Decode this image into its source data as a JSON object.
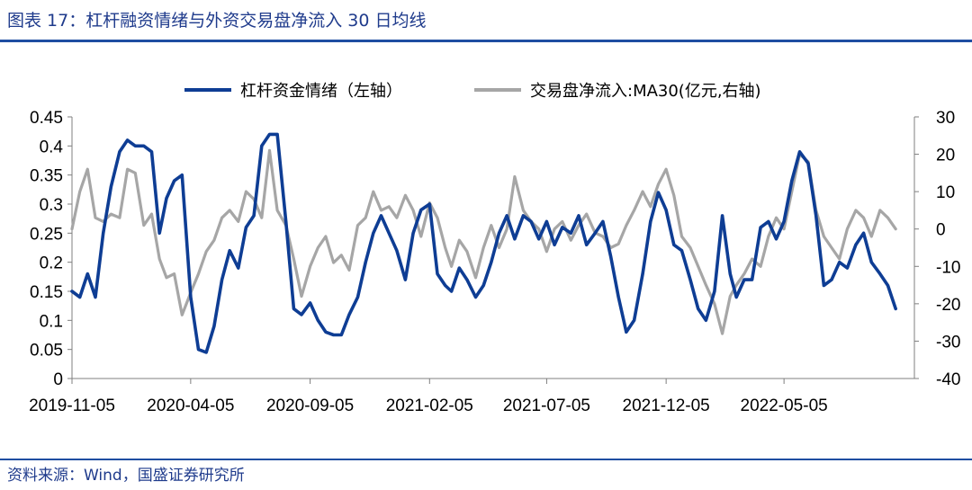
{
  "header": {
    "title": "图表 17：杠杆融资情绪与外资交易盘净流入 30 日均线"
  },
  "footer": {
    "source": "资料来源：Wind，国盛证券研究所"
  },
  "chart_data": {
    "type": "line",
    "title": "",
    "legend_position": "top",
    "grid": false,
    "x_tick_labels": [
      "2019-11-05",
      "2020-04-05",
      "2020-09-05",
      "2021-02-05",
      "2021-07-05",
      "2021-12-05",
      "2022-05-05"
    ],
    "x_range": [
      "2019-11-05",
      "2022-10-19"
    ],
    "y_left": {
      "ylim": [
        0,
        0.45
      ],
      "ticks": [
        "0",
        "0.05",
        "0.1",
        "0.15",
        "0.2",
        "0.25",
        "0.3",
        "0.35",
        "0.4",
        "0.45"
      ]
    },
    "y_right": {
      "ylim": [
        -40,
        30
      ],
      "ticks": [
        "-40",
        "-30",
        "-20",
        "-10",
        "0",
        "10",
        "20",
        "30"
      ]
    },
    "series": [
      {
        "name": "杠杆资金情绪（左轴）",
        "axis": "left",
        "color": "#0e3d94",
        "points": [
          [
            "2019-11-05",
            0.15
          ],
          [
            "2019-11-15",
            0.14
          ],
          [
            "2019-11-25",
            0.18
          ],
          [
            "2019-12-05",
            0.14
          ],
          [
            "2019-12-15",
            0.25
          ],
          [
            "2019-12-25",
            0.33
          ],
          [
            "2020-01-05",
            0.39
          ],
          [
            "2020-01-15",
            0.41
          ],
          [
            "2020-01-25",
            0.4
          ],
          [
            "2020-02-05",
            0.4
          ],
          [
            "2020-02-15",
            0.39
          ],
          [
            "2020-02-25",
            0.25
          ],
          [
            "2020-03-05",
            0.31
          ],
          [
            "2020-03-15",
            0.34
          ],
          [
            "2020-03-25",
            0.35
          ],
          [
            "2020-04-05",
            0.14
          ],
          [
            "2020-04-15",
            0.05
          ],
          [
            "2020-04-25",
            0.045
          ],
          [
            "2020-05-05",
            0.09
          ],
          [
            "2020-05-15",
            0.17
          ],
          [
            "2020-05-25",
            0.22
          ],
          [
            "2020-06-05",
            0.19
          ],
          [
            "2020-06-15",
            0.26
          ],
          [
            "2020-06-25",
            0.28
          ],
          [
            "2020-07-05",
            0.4
          ],
          [
            "2020-07-15",
            0.42
          ],
          [
            "2020-07-25",
            0.42
          ],
          [
            "2020-08-05",
            0.27
          ],
          [
            "2020-08-15",
            0.12
          ],
          [
            "2020-08-25",
            0.11
          ],
          [
            "2020-09-05",
            0.13
          ],
          [
            "2020-09-15",
            0.1
          ],
          [
            "2020-09-25",
            0.08
          ],
          [
            "2020-10-05",
            0.075
          ],
          [
            "2020-10-15",
            0.075
          ],
          [
            "2020-10-25",
            0.11
          ],
          [
            "2020-11-05",
            0.14
          ],
          [
            "2020-11-15",
            0.2
          ],
          [
            "2020-11-25",
            0.25
          ],
          [
            "2020-12-05",
            0.28
          ],
          [
            "2020-12-15",
            0.25
          ],
          [
            "2020-12-25",
            0.22
          ],
          [
            "2021-01-05",
            0.17
          ],
          [
            "2021-01-15",
            0.25
          ],
          [
            "2021-01-25",
            0.29
          ],
          [
            "2021-02-05",
            0.3
          ],
          [
            "2021-02-15",
            0.18
          ],
          [
            "2021-02-25",
            0.16
          ],
          [
            "2021-03-05",
            0.15
          ],
          [
            "2021-03-15",
            0.19
          ],
          [
            "2021-03-25",
            0.17
          ],
          [
            "2021-04-05",
            0.14
          ],
          [
            "2021-04-15",
            0.16
          ],
          [
            "2021-04-25",
            0.2
          ],
          [
            "2021-05-05",
            0.25
          ],
          [
            "2021-05-15",
            0.28
          ],
          [
            "2021-05-25",
            0.24
          ],
          [
            "2021-06-05",
            0.28
          ],
          [
            "2021-06-15",
            0.27
          ],
          [
            "2021-06-25",
            0.24
          ],
          [
            "2021-07-05",
            0.27
          ],
          [
            "2021-07-15",
            0.23
          ],
          [
            "2021-07-25",
            0.26
          ],
          [
            "2021-08-05",
            0.25
          ],
          [
            "2021-08-15",
            0.28
          ],
          [
            "2021-08-25",
            0.23
          ],
          [
            "2021-09-05",
            0.25
          ],
          [
            "2021-09-15",
            0.27
          ],
          [
            "2021-09-25",
            0.21
          ],
          [
            "2021-10-05",
            0.14
          ],
          [
            "2021-10-15",
            0.08
          ],
          [
            "2021-10-25",
            0.1
          ],
          [
            "2021-11-05",
            0.18
          ],
          [
            "2021-11-15",
            0.27
          ],
          [
            "2021-11-25",
            0.32
          ],
          [
            "2021-12-05",
            0.29
          ],
          [
            "2021-12-15",
            0.23
          ],
          [
            "2021-12-25",
            0.22
          ],
          [
            "2022-01-05",
            0.17
          ],
          [
            "2022-01-15",
            0.12
          ],
          [
            "2022-01-25",
            0.1
          ],
          [
            "2022-02-05",
            0.15
          ],
          [
            "2022-02-15",
            0.28
          ],
          [
            "2022-02-25",
            0.18
          ],
          [
            "2022-03-05",
            0.14
          ],
          [
            "2022-03-15",
            0.17
          ],
          [
            "2022-03-25",
            0.17
          ],
          [
            "2022-04-05",
            0.26
          ],
          [
            "2022-04-15",
            0.27
          ],
          [
            "2022-04-25",
            0.24
          ],
          [
            "2022-05-05",
            0.27
          ],
          [
            "2022-05-15",
            0.34
          ],
          [
            "2022-05-25",
            0.39
          ],
          [
            "2022-06-05",
            0.37
          ],
          [
            "2022-06-15",
            0.28
          ],
          [
            "2022-06-25",
            0.16
          ],
          [
            "2022-07-05",
            0.17
          ],
          [
            "2022-07-15",
            0.2
          ],
          [
            "2022-07-25",
            0.19
          ],
          [
            "2022-08-05",
            0.23
          ],
          [
            "2022-08-15",
            0.25
          ],
          [
            "2022-08-25",
            0.2
          ],
          [
            "2022-09-05",
            0.18
          ],
          [
            "2022-09-15",
            0.16
          ],
          [
            "2022-09-25",
            0.12
          ]
        ]
      },
      {
        "name": "交易盘净流入:MA30(亿元,右轴)",
        "axis": "right",
        "color": "#a6a6a6",
        "points": [
          [
            "2019-11-05",
            0
          ],
          [
            "2019-11-15",
            10
          ],
          [
            "2019-11-25",
            16
          ],
          [
            "2019-12-05",
            3
          ],
          [
            "2019-12-15",
            2
          ],
          [
            "2019-12-25",
            4
          ],
          [
            "2020-01-05",
            3
          ],
          [
            "2020-01-15",
            16
          ],
          [
            "2020-01-25",
            15
          ],
          [
            "2020-02-05",
            1
          ],
          [
            "2020-02-15",
            4
          ],
          [
            "2020-02-25",
            -8
          ],
          [
            "2020-03-05",
            -13
          ],
          [
            "2020-03-15",
            -12
          ],
          [
            "2020-03-25",
            -23
          ],
          [
            "2020-04-05",
            -17
          ],
          [
            "2020-04-15",
            -12
          ],
          [
            "2020-04-25",
            -6
          ],
          [
            "2020-05-05",
            -3
          ],
          [
            "2020-05-15",
            3
          ],
          [
            "2020-05-25",
            5
          ],
          [
            "2020-06-05",
            2
          ],
          [
            "2020-06-15",
            10
          ],
          [
            "2020-06-25",
            8
          ],
          [
            "2020-07-05",
            3
          ],
          [
            "2020-07-15",
            21
          ],
          [
            "2020-07-25",
            5
          ],
          [
            "2020-08-05",
            1
          ],
          [
            "2020-08-15",
            -8
          ],
          [
            "2020-08-25",
            -18
          ],
          [
            "2020-09-05",
            -10
          ],
          [
            "2020-09-15",
            -5
          ],
          [
            "2020-09-25",
            -2
          ],
          [
            "2020-10-05",
            -9
          ],
          [
            "2020-10-15",
            -7
          ],
          [
            "2020-10-25",
            -11
          ],
          [
            "2020-11-05",
            1
          ],
          [
            "2020-11-15",
            3
          ],
          [
            "2020-11-25",
            10
          ],
          [
            "2020-12-05",
            5
          ],
          [
            "2020-12-15",
            6
          ],
          [
            "2020-12-25",
            3
          ],
          [
            "2021-01-05",
            9
          ],
          [
            "2021-01-15",
            5
          ],
          [
            "2021-01-25",
            -2
          ],
          [
            "2021-02-05",
            7
          ],
          [
            "2021-02-15",
            3
          ],
          [
            "2021-02-25",
            -5
          ],
          [
            "2021-03-05",
            -10
          ],
          [
            "2021-03-15",
            -3
          ],
          [
            "2021-03-25",
            -6
          ],
          [
            "2021-04-05",
            -13
          ],
          [
            "2021-04-15",
            -5
          ],
          [
            "2021-04-25",
            1
          ],
          [
            "2021-05-05",
            -5
          ],
          [
            "2021-05-15",
            0
          ],
          [
            "2021-05-25",
            14
          ],
          [
            "2021-06-05",
            5
          ],
          [
            "2021-06-15",
            2
          ],
          [
            "2021-06-25",
            0
          ],
          [
            "2021-07-05",
            -6
          ],
          [
            "2021-07-15",
            0
          ],
          [
            "2021-07-25",
            2
          ],
          [
            "2021-08-05",
            -3
          ],
          [
            "2021-08-15",
            1
          ],
          [
            "2021-08-25",
            4
          ],
          [
            "2021-09-05",
            -1
          ],
          [
            "2021-09-15",
            -2
          ],
          [
            "2021-09-25",
            -5
          ],
          [
            "2021-10-05",
            -4
          ],
          [
            "2021-10-15",
            1
          ],
          [
            "2021-10-25",
            5
          ],
          [
            "2021-11-05",
            10
          ],
          [
            "2021-11-15",
            6
          ],
          [
            "2021-11-25",
            12
          ],
          [
            "2021-12-05",
            16
          ],
          [
            "2021-12-15",
            9
          ],
          [
            "2021-12-25",
            -2
          ],
          [
            "2022-01-05",
            -5
          ],
          [
            "2022-01-15",
            -10
          ],
          [
            "2022-01-25",
            -15
          ],
          [
            "2022-02-05",
            -20
          ],
          [
            "2022-02-15",
            -28
          ],
          [
            "2022-02-25",
            -18
          ],
          [
            "2022-03-05",
            -15
          ],
          [
            "2022-03-15",
            -12
          ],
          [
            "2022-03-25",
            -8
          ],
          [
            "2022-04-05",
            -10
          ],
          [
            "2022-04-15",
            -2
          ],
          [
            "2022-04-25",
            3
          ],
          [
            "2022-05-05",
            0
          ],
          [
            "2022-05-15",
            10
          ],
          [
            "2022-05-25",
            20
          ],
          [
            "2022-06-05",
            18
          ],
          [
            "2022-06-15",
            5
          ],
          [
            "2022-06-25",
            -2
          ],
          [
            "2022-07-05",
            -5
          ],
          [
            "2022-07-15",
            -8
          ],
          [
            "2022-07-25",
            0
          ],
          [
            "2022-08-05",
            5
          ],
          [
            "2022-08-15",
            3
          ],
          [
            "2022-08-25",
            -2
          ],
          [
            "2022-09-05",
            5
          ],
          [
            "2022-09-15",
            3
          ],
          [
            "2022-09-25",
            0
          ]
        ]
      }
    ]
  }
}
